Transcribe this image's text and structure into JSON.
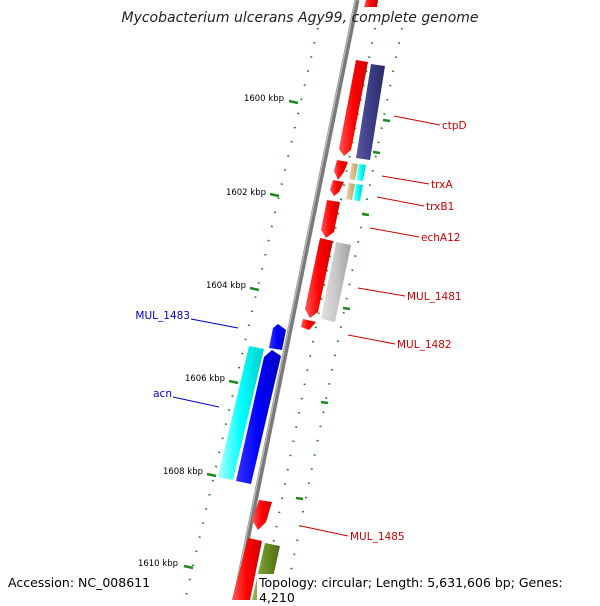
{
  "title": "Mycobacterium ulcerans Agy99, complete genome",
  "footer": {
    "accession": "Accession: NC_008611",
    "topology": "Topology: circular; Length: 5,631,606 bp; Genes: 4,210"
  },
  "colors": {
    "backbone": "#7a7a7a",
    "tick": "#1e8a1e",
    "forward_gene": "#ff0000",
    "reverse_label": "#0000cc",
    "forward_label": "#cc0000"
  },
  "ticks": [
    {
      "label": "1600 kbp"
    },
    {
      "label": "1602 kbp"
    },
    {
      "label": "1604 kbp"
    },
    {
      "label": "1606 kbp"
    },
    {
      "label": "1608 kbp"
    },
    {
      "label": "1610 kbp"
    }
  ],
  "gene_labels": [
    {
      "name": "ctpD"
    },
    {
      "name": "trxA"
    },
    {
      "name": "trxB1"
    },
    {
      "name": "echA12"
    },
    {
      "name": "MUL_1481"
    },
    {
      "name": "MUL_1482"
    },
    {
      "name": "MUL_1483"
    },
    {
      "name": "acn"
    },
    {
      "name": "MUL_1485"
    }
  ]
}
